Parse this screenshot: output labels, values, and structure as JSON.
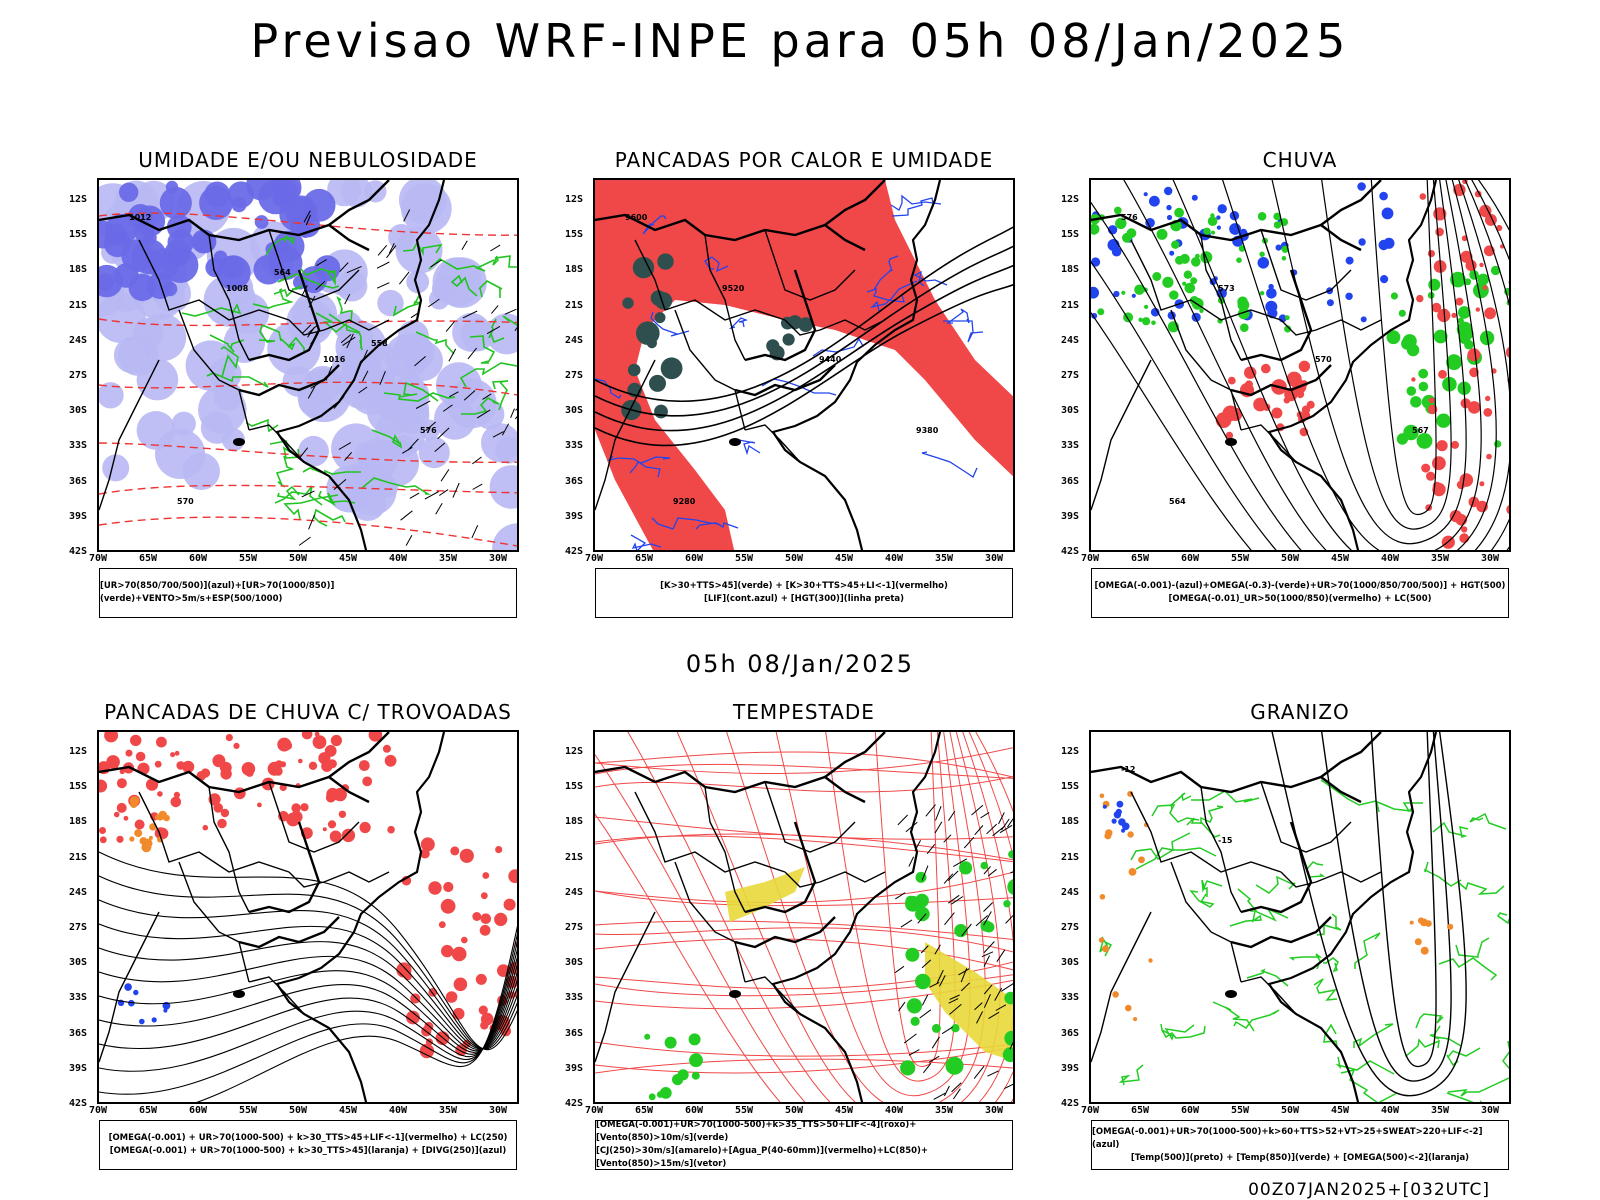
{
  "header": {
    "title": "Previsao WRF-INPE  para 05h 08/Jan/2025",
    "mid_date": "05h 08/Jan/2025",
    "footer_stamp": "00Z07JAN2025+[032UTC]"
  },
  "axes": {
    "lat_labels": [
      "12S",
      "15S",
      "18S",
      "21S",
      "24S",
      "27S",
      "30S",
      "33S",
      "36S",
      "39S",
      "42S"
    ],
    "lon_labels": [
      "70W",
      "65W",
      "60W",
      "55W",
      "50W",
      "45W",
      "40W",
      "35W",
      "30W"
    ]
  },
  "panels": [
    {
      "id": "umidade",
      "title": "UMIDADE E/OU NEBULOSIDADE",
      "legend": [
        "[UR>70(850/700/500)](azul)+[UR>70(1000/850)](verde)+VENTO>5m/s+ESP(500/1000)"
      ],
      "colors": {
        "fill1": "#6a6ae8",
        "fill2": "#b8b8f4",
        "contour": "#22c422",
        "dashed": "#ee3333"
      },
      "contour_labels": [
        "1012",
        "1008",
        "1016",
        "576",
        "570",
        "564",
        "558"
      ]
    },
    {
      "id": "pancadas_calor",
      "title": "PANCADAS POR CALOR E UMIDADE",
      "legend": [
        "[K>30+TTS>45](verde) + [K>30+TTS>45+LI<-1](vermelho)",
        "[LIF](cont.azul) + [HGT(300)](linha preta)"
      ],
      "colors": {
        "fill1": "#f04848",
        "fill2": "#2f4f4f",
        "contour": "#2244ee"
      },
      "contour_labels": [
        "9600",
        "9520",
        "9440",
        "9380",
        "9280"
      ]
    },
    {
      "id": "chuva",
      "title": "CHUVA",
      "legend": [
        "[OMEGA(-0.001)-(azul)+OMEGA(-0.3)-(verde)+UR>70(1000/850/700/500)] + HGT(500)",
        "[OMEGA(-0.01)_UR>50(1000/850)(vermelho) + LC(500)"
      ],
      "colors": {
        "fill1": "#f04848",
        "fill2": "#22cc22",
        "fill3": "#2244ee"
      },
      "contour_labels": [
        "576",
        "573",
        "570",
        "567",
        "564"
      ]
    },
    {
      "id": "pancadas_trovoadas",
      "title": "PANCADAS DE CHUVA C/ TROVOADAS",
      "legend": [
        "[OMEGA(-0.001) + UR>70(1000-500) + k>30_TTS>45+LIF<-1](vermelho) + LC(250)",
        "[OMEGA(-0.001) + UR>70(1000-500) + k>30_TTS>45](laranja) + [DIVG(250)](azul)"
      ],
      "colors": {
        "fill1": "#f04848",
        "fill2": "#f08a2a",
        "fill3": "#2244ee"
      }
    },
    {
      "id": "tempestade",
      "title": "TEMPESTADE",
      "legend": [
        "[OMEGA(-0.001)+UR>70(1000-500)+k>35_TTS>50+LIF<-4](roxo)+[Vento(850)>10m/s](verde)",
        "[CJ(250)>30m/s](amarelo)+[Agua_P(40-60mm)](vermelho)+LC(850)+[Vento(850)>15m/s](vetor)"
      ],
      "colors": {
        "fill1": "#e8d838",
        "fill2": "#22cc22",
        "contour": "#f04848"
      }
    },
    {
      "id": "granizo",
      "title": "GRANIZO",
      "legend": [
        "[OMEGA(-0.001)+UR>70(1000-500)+k>60+TTS>52+VT>25+SWEAT>220+LIF<-2](azul)",
        "[Temp(500)](preto) + [Temp(850)](verde) + [OMEGA(500)<-2](laranja)"
      ],
      "colors": {
        "contour": "#22cc22",
        "fill1": "#f08a2a",
        "fill2": "#2244ee"
      },
      "contour_labels": [
        "-12",
        "-15"
      ]
    }
  ]
}
